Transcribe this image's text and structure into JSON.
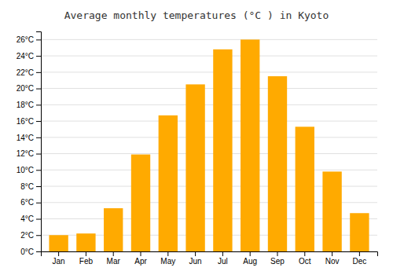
{
  "chart_data": {
    "type": "bar",
    "title": "Average monthly temperatures (°C ) in Kyoto",
    "categories": [
      "Jan",
      "Feb",
      "Mar",
      "Apr",
      "May",
      "Jun",
      "Jul",
      "Aug",
      "Sep",
      "Oct",
      "Nov",
      "Dec"
    ],
    "values": [
      2.0,
      2.2,
      5.3,
      11.9,
      16.7,
      20.5,
      24.8,
      26.0,
      21.5,
      15.3,
      9.8,
      4.7
    ],
    "color": "#FFAA00",
    "ylim": [
      0,
      27
    ],
    "yticks": [
      {
        "value": 0,
        "label": "0°C"
      },
      {
        "value": 2,
        "label": "2°C"
      },
      {
        "value": 4,
        "label": "4°C"
      },
      {
        "value": 6,
        "label": "6°C"
      },
      {
        "value": 8,
        "label": "8°C"
      },
      {
        "value": 10,
        "label": "10°C"
      },
      {
        "value": 12,
        "label": "12°C"
      },
      {
        "value": 14,
        "label": "14°C"
      },
      {
        "value": 16,
        "label": "16°C"
      },
      {
        "value": 18,
        "label": "18°C"
      },
      {
        "value": 20,
        "label": "20°C"
      },
      {
        "value": 22,
        "label": "22°C"
      },
      {
        "value": 24,
        "label": "24°C"
      },
      {
        "value": 26,
        "label": "26°C"
      }
    ],
    "grid": true
  }
}
